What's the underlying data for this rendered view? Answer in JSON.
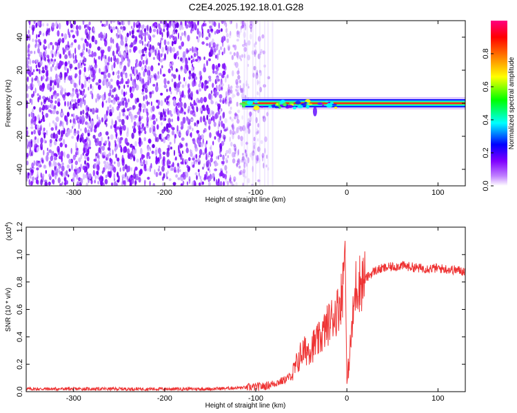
{
  "title": "C2E4.2025.192.18.01.G28",
  "chart_data": [
    {
      "type": "heatmap",
      "xlabel": "Height of straight line (km)",
      "ylabel": "Frequency (Hz)",
      "xlim": [
        -352,
        130
      ],
      "ylim": [
        -50,
        50
      ],
      "xticks": [
        -300,
        -200,
        -100,
        0,
        100
      ],
      "xtick_labels": [
        "-300",
        "-200",
        "-100",
        "0",
        "100"
      ],
      "yticks": [
        -40,
        -20,
        0,
        20,
        40
      ],
      "ytick_labels": [
        "-40",
        "-20",
        "0",
        "20",
        "40"
      ],
      "noise_region_x": [
        -352,
        -85
      ],
      "signal_band": {
        "x": [
          -115,
          130
        ],
        "frequency": 0
      },
      "colorbar": {
        "label": "Normalized spectral amplitude",
        "range": [
          0,
          1
        ],
        "ticks": [
          0.0,
          0.2,
          0.4,
          0.6,
          0.8
        ],
        "tick_labels": [
          "0.0",
          "0.2",
          "0.4",
          "0.6",
          "0.8"
        ],
        "colors": [
          "#ffffff",
          "#8000ff",
          "#0000ff",
          "#00ffff",
          "#00ff00",
          "#ffff00",
          "#ff8000",
          "#ff0000",
          "#ff0080"
        ]
      }
    },
    {
      "type": "line",
      "xlabel": "Height of straight line (km)",
      "ylabel": "SNR (10 * v/v)",
      "scale_label": "(x10",
      "scale_exp": "4",
      "xlim": [
        -352,
        130
      ],
      "ylim": [
        0,
        1.2
      ],
      "xticks": [
        -300,
        -200,
        -100,
        0,
        100
      ],
      "xtick_labels": [
        "-300",
        "-200",
        "-100",
        "0",
        "100"
      ],
      "yticks": [
        0.0,
        0.2,
        0.4,
        0.6,
        0.8,
        1.0,
        1.2
      ],
      "ytick_labels": [
        "0.0",
        "0.2",
        "0.4",
        "0.6",
        "0.8",
        "1.0",
        "1.2"
      ],
      "color": "#ee3333",
      "x": [
        -352,
        -300,
        -250,
        -200,
        -150,
        -110,
        -90,
        -70,
        -60,
        -50,
        -40,
        -30,
        -20,
        -10,
        -5,
        -2,
        0,
        10,
        20,
        30,
        40,
        60,
        80,
        100,
        130
      ],
      "y": [
        0.02,
        0.02,
        0.02,
        0.02,
        0.02,
        0.03,
        0.04,
        0.08,
        0.12,
        0.28,
        0.32,
        0.38,
        0.5,
        0.6,
        0.72,
        1.1,
        0.05,
        0.78,
        0.82,
        0.88,
        0.9,
        0.92,
        0.9,
        0.9,
        0.88
      ]
    }
  ]
}
